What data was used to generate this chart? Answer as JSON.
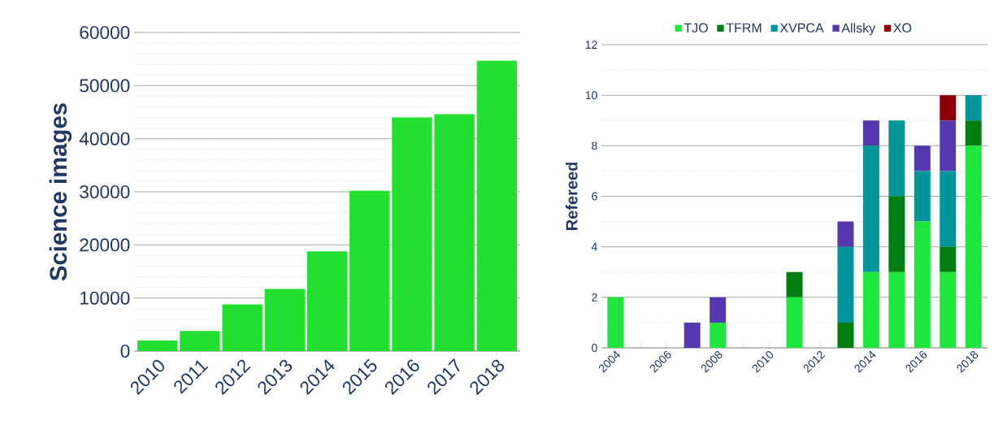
{
  "chart_data": [
    {
      "type": "bar",
      "ylabel": "Science images",
      "categories": [
        "2010",
        "2011",
        "2012",
        "2013",
        "2014",
        "2015",
        "2016",
        "2017",
        "2018"
      ],
      "values": [
        2000,
        3800,
        8800,
        11700,
        18800,
        30200,
        44000,
        44600,
        54700
      ],
      "color": "#22e030",
      "ylim": [
        0,
        60000
      ],
      "yticks": [
        0,
        10000,
        20000,
        30000,
        40000,
        50000,
        60000
      ],
      "grid": "y"
    },
    {
      "type": "bar",
      "ylabel": "Refereed",
      "stacked": true,
      "legend": "top",
      "grid": "y",
      "categories": [
        "2004",
        null,
        "2006",
        null,
        "2008",
        null,
        "2010",
        null,
        "2012",
        null,
        "2014",
        null,
        "2016",
        null,
        "2018"
      ],
      "ylim": [
        0,
        12
      ],
      "yticks": [
        0,
        2,
        4,
        6,
        8,
        10,
        12
      ],
      "series": [
        {
          "name": "TJO",
          "color": "#1ee63c",
          "values": [
            2,
            0,
            0,
            0,
            1,
            0,
            0,
            2,
            0,
            0,
            3,
            3,
            5,
            3,
            8
          ]
        },
        {
          "name": "TFRM",
          "color": "#007d10",
          "values": [
            0,
            0,
            0,
            0,
            0,
            0,
            0,
            1,
            0,
            1,
            0,
            3,
            0,
            1,
            1
          ]
        },
        {
          "name": "XVPCA",
          "color": "#00959a",
          "values": [
            0,
            0,
            0,
            0,
            0,
            0,
            0,
            0,
            0,
            3,
            5,
            3,
            2,
            3,
            1
          ]
        },
        {
          "name": "Allsky",
          "color": "#5538b0",
          "values": [
            0,
            0,
            0,
            1,
            1,
            0,
            0,
            0,
            0,
            1,
            1,
            0,
            1,
            2,
            0
          ]
        },
        {
          "name": "XO",
          "color": "#8e0008",
          "values": [
            0,
            0,
            0,
            0,
            0,
            0,
            0,
            0,
            0,
            0,
            0,
            0,
            0,
            1,
            0
          ]
        }
      ]
    }
  ]
}
